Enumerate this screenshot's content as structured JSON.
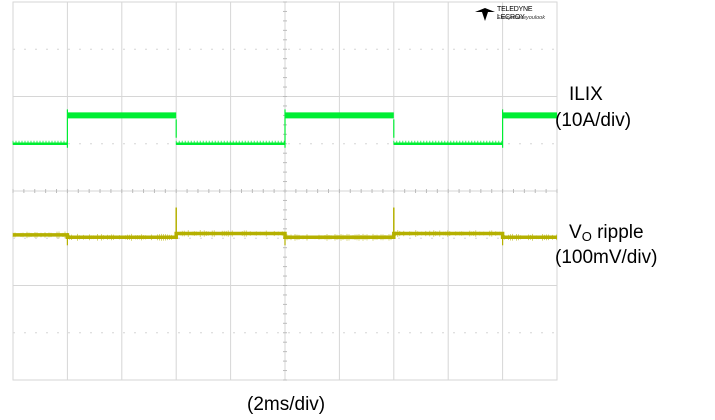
{
  "brand": {
    "name": "TELEDYNE LECROY",
    "tagline": "Everywhereyoulook"
  },
  "labels": {
    "ilix_name": "ILIX",
    "ilix_scale": "(10A/div)",
    "vo_name_main": "V",
    "vo_name_sub": "O",
    "vo_name_rest": " ripple",
    "vo_scale": "(100mV/div)",
    "time_scale": "(2ms/div)"
  },
  "colors": {
    "grid": "#d6d6d6",
    "ilix_trace": "#00ee33",
    "vo_trace": "#b5b000"
  },
  "chart_data": {
    "type": "line",
    "title": "",
    "xlabel": "(2ms/div)",
    "grid": true,
    "divisions": {
      "x": 10,
      "y": 8
    },
    "xlim_div": [
      0,
      10
    ],
    "series": [
      {
        "name": "ILIX",
        "unit": "10A/div",
        "color": "#00ee33",
        "x_div": [
          0.0,
          1.0,
          1.0,
          3.0,
          3.0,
          5.0,
          5.0,
          7.0,
          7.0,
          9.0,
          9.0,
          10.0
        ],
        "y_div": [
          1.0,
          1.0,
          1.6,
          1.6,
          1.0,
          1.0,
          1.6,
          1.6,
          1.0,
          1.0,
          1.6,
          1.6
        ]
      },
      {
        "name": "VO ripple",
        "unit": "100mV/div",
        "color": "#b5b000",
        "x_div": [
          0.0,
          1.0,
          1.0,
          3.0,
          3.0,
          5.0,
          5.0,
          7.0,
          7.0,
          9.0,
          9.0,
          10.0
        ],
        "y_div": [
          -0.93,
          -0.93,
          -0.98,
          -0.98,
          -0.9,
          -0.9,
          -0.98,
          -0.98,
          -0.9,
          -0.9,
          -0.98,
          -0.98
        ]
      }
    ]
  }
}
